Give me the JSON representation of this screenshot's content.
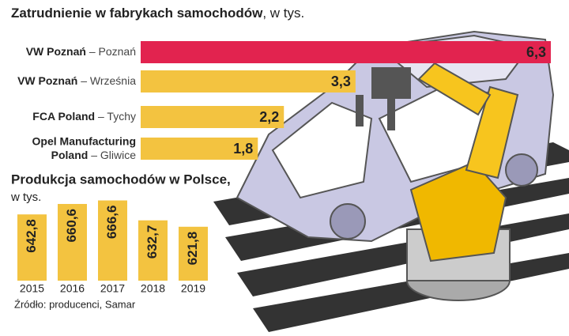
{
  "chart_data": [
    {
      "type": "hbar",
      "title": "Zatrudnienie w fabrykach samochodów",
      "subtitle": ", w tys.",
      "categories": [
        "VW Poznań",
        "VW Poznań",
        "FCA Poland",
        "Opel Manufacturing Poland"
      ],
      "locations": [
        "– Poznań",
        "– Września",
        "– Tychy",
        "– Gliwice"
      ],
      "values": [
        6.3,
        3.3,
        2.2,
        1.8
      ],
      "value_labels": [
        "6,3",
        "3,3",
        "2,2",
        "1,8"
      ],
      "colors": [
        "#e2234f",
        "#f3c340",
        "#f3c340",
        "#f3c340"
      ]
    },
    {
      "type": "bar",
      "title": "Produkcja samochodów w Polsce,",
      "subtitle": "w tys.",
      "categories": [
        "2015",
        "2016",
        "2017",
        "2018",
        "2019"
      ],
      "values": [
        642.8,
        660.6,
        666.6,
        632.7,
        621.8
      ],
      "value_labels": [
        "642,8",
        "660,6",
        "666,6",
        "632,7",
        "621,8"
      ],
      "color": "#f3c340",
      "ylim": [
        530,
        670
      ]
    }
  ],
  "source": "Źródło: producenci, Samar"
}
